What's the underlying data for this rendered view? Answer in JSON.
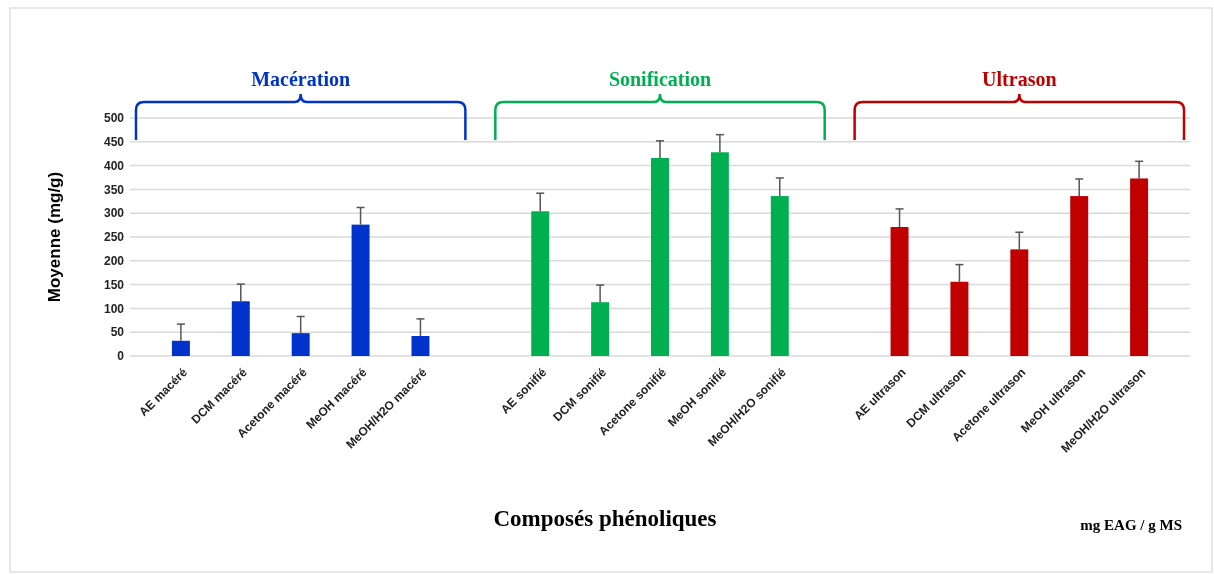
{
  "chart_data": {
    "type": "bar",
    "xlabel": "Composés phénoliques",
    "ylabel": "Moyenne (mg/g)",
    "categories": [
      "AE macéré",
      "DCM macéré",
      "Acetone macéré",
      "MeOH macéré",
      "MeOH/H2O macéré",
      null,
      "AE sonifié",
      "DCM sonifié",
      "Acetone sonifié",
      "MeOH sonifié",
      "MeOH/H2O sonifié",
      null,
      "AE ultrason",
      "DCM ultrason",
      "Acetone ultrason",
      "MeOH ultrason",
      "MeOH/H2O ultrason"
    ],
    "series": [
      {
        "color": "#0033cc",
        "values": [
          32,
          115,
          48,
          276,
          42,
          null,
          null,
          null,
          null,
          null,
          null,
          null,
          null,
          null,
          null,
          null,
          null
        ],
        "errors": [
          35,
          36,
          35,
          36,
          36,
          null,
          null,
          null,
          null,
          null,
          null,
          null,
          null,
          null,
          null,
          null,
          null
        ]
      },
      {
        "color": "#00b050",
        "values": [
          null,
          null,
          null,
          null,
          null,
          null,
          304,
          113,
          416,
          428,
          336,
          null,
          null,
          null,
          null,
          null,
          null
        ],
        "errors": [
          null,
          null,
          null,
          null,
          null,
          null,
          38,
          36,
          36,
          37,
          38,
          null,
          null,
          null,
          null,
          null,
          null
        ]
      },
      {
        "color": "#c00000",
        "values": [
          null,
          null,
          null,
          null,
          null,
          null,
          null,
          null,
          null,
          null,
          null,
          null,
          271,
          156,
          224,
          336,
          373
        ],
        "errors": [
          null,
          null,
          null,
          null,
          null,
          null,
          null,
          null,
          null,
          null,
          null,
          null,
          38,
          36,
          36,
          36,
          36
        ]
      }
    ],
    "ylim": [
      0,
      500
    ],
    "yticks": [
      0,
      50,
      100,
      150,
      200,
      250,
      300,
      350,
      400,
      450,
      500
    ],
    "grid": "y",
    "annotations": [
      "Macération",
      "Sonification",
      "Ultrason",
      "mg EAG / g MS"
    ]
  }
}
